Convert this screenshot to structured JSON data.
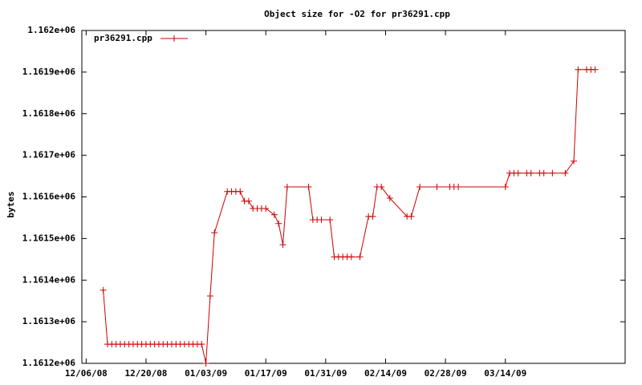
{
  "chart_data": {
    "type": "line",
    "title": "Object size for -O2 for pr36291.cpp",
    "ylabel": "bytes",
    "x": [
      "12/10/08",
      "12/11/08",
      "12/12/08",
      "12/13/08",
      "12/14/08",
      "12/15/08",
      "12/16/08",
      "12/17/08",
      "12/18/08",
      "12/19/08",
      "12/20/08",
      "12/21/08",
      "12/22/08",
      "12/23/08",
      "12/24/08",
      "12/25/08",
      "12/26/08",
      "12/27/08",
      "12/28/08",
      "12/29/08",
      "12/30/08",
      "12/31/08",
      "01/01/09",
      "01/02/09",
      "01/03/09",
      "01/04/09",
      "01/05/09",
      "01/08/09",
      "01/09/09",
      "01/10/09",
      "01/11/09",
      "01/12/09",
      "01/13/09",
      "01/14/09",
      "01/15/09",
      "01/16/09",
      "01/17/09",
      "01/19/09",
      "01/20/09",
      "01/21/09",
      "01/22/09",
      "01/27/09",
      "01/28/09",
      "01/29/09",
      "01/30/09",
      "02/01/09",
      "02/02/09",
      "02/03/09",
      "02/04/09",
      "02/05/09",
      "02/06/09",
      "02/08/09",
      "02/10/09",
      "02/11/09",
      "02/12/09",
      "02/13/09",
      "02/15/09",
      "02/19/09",
      "02/20/09",
      "02/22/09",
      "02/26/09",
      "03/01/09",
      "03/02/09",
      "03/03/09",
      "03/14/09",
      "03/15/09",
      "03/16/09",
      "03/17/09",
      "03/19/09",
      "03/20/09",
      "03/22/09",
      "03/23/09",
      "03/25/09",
      "03/28/09",
      "03/30/09",
      "03/31/09",
      "04/02/09",
      "04/03/09",
      "04/04/09"
    ],
    "series": [
      {
        "name": "pr36291.cpp",
        "color": "#cc0000",
        "values": [
          1161376,
          1161246,
          1161246,
          1161246,
          1161246,
          1161246,
          1161246,
          1161246,
          1161246,
          1161246,
          1161246,
          1161246,
          1161246,
          1161246,
          1161246,
          1161246,
          1161246,
          1161246,
          1161246,
          1161246,
          1161246,
          1161246,
          1161246,
          1161246,
          1161200,
          1161362,
          1161514,
          1161613,
          1161613,
          1161613,
          1161613,
          1161590,
          1161590,
          1161572,
          1161572,
          1161572,
          1161572,
          1161557,
          1161536,
          1161485,
          1161624,
          1161624,
          1161545,
          1161545,
          1161545,
          1161545,
          1161456,
          1161456,
          1161456,
          1161456,
          1161456,
          1161456,
          1161553,
          1161553,
          1161624,
          1161624,
          1161597,
          1161553,
          1161553,
          1161624,
          1161624,
          1161624,
          1161624,
          1161624,
          1161624,
          1161657,
          1161657,
          1161657,
          1161657,
          1161657,
          1161657,
          1161657,
          1161657,
          1161657,
          1161686,
          1161906,
          1161906,
          1161906,
          1161906
        ]
      }
    ],
    "xlim": [
      "12/05/08",
      "04/11/09"
    ],
    "xticks": [
      "12/06/08",
      "12/20/08",
      "01/03/09",
      "01/17/09",
      "01/31/09",
      "02/14/09",
      "02/28/09",
      "03/14/09"
    ],
    "ylim": [
      1161200,
      1162000
    ],
    "yticks": [
      {
        "value": 1161200,
        "label": "1.1612e+06"
      },
      {
        "value": 1161300,
        "label": "1.1613e+06"
      },
      {
        "value": 1161400,
        "label": "1.1614e+06"
      },
      {
        "value": 1161500,
        "label": "1.1615e+06"
      },
      {
        "value": 1161600,
        "label": "1.1616e+06"
      },
      {
        "value": 1161700,
        "label": "1.1617e+06"
      },
      {
        "value": 1161800,
        "label": "1.1618e+06"
      },
      {
        "value": 1161900,
        "label": "1.1619e+06"
      },
      {
        "value": 1162000,
        "label": "1.162e+06"
      }
    ],
    "legend": "top-left"
  }
}
